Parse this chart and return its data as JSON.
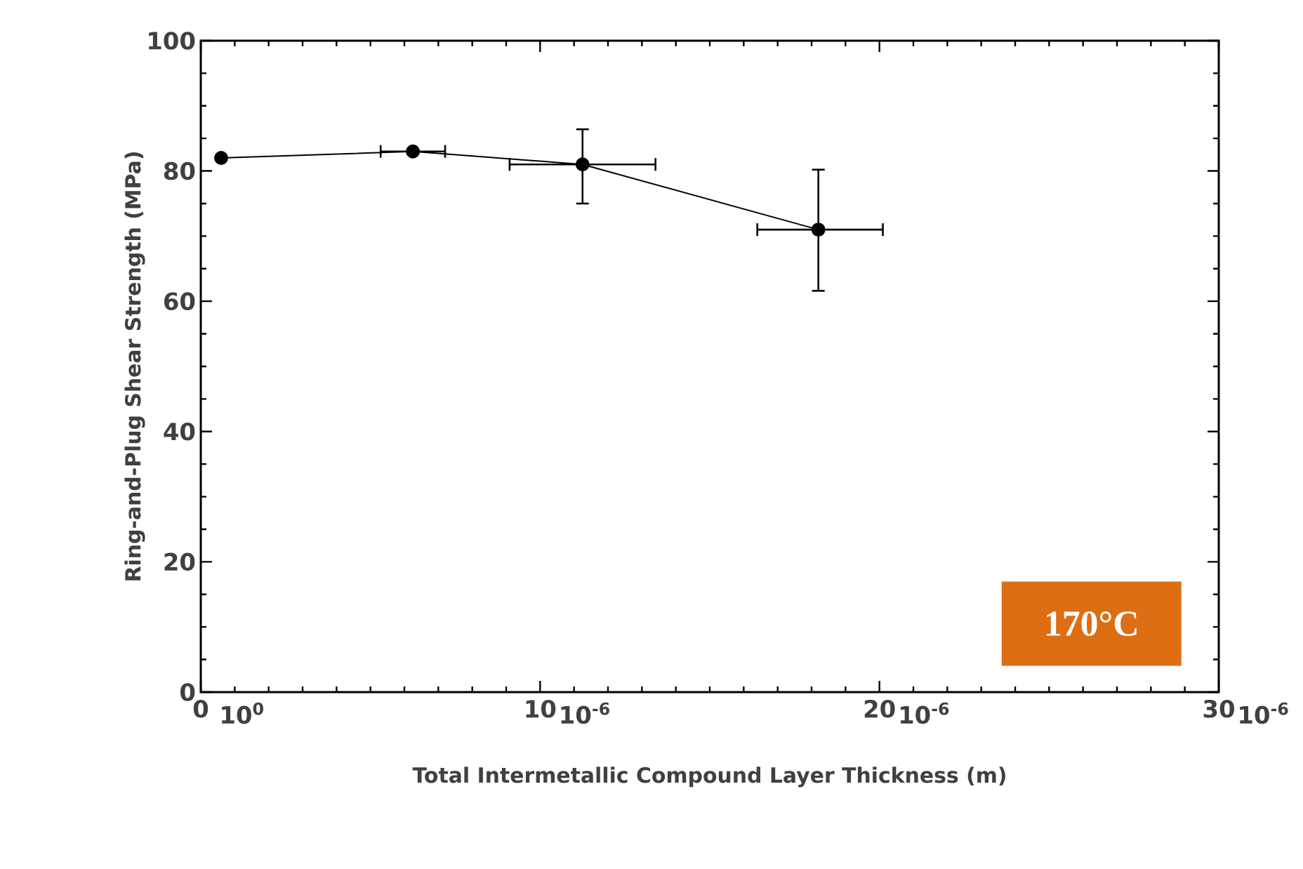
{
  "chart_data": {
    "type": "line",
    "xlabel": "Total  Intermetallic  Compound  Layer  Thickness    (m)",
    "ylabel": "Ring-and-Plug  Shear  Strength    (MPa)",
    "x": [
      0.6,
      6.25,
      11.25,
      18.2
    ],
    "values": [
      82,
      83,
      81,
      71
    ],
    "errors": [
      null,
      null,
      [
        75,
        86.4
      ],
      [
        61.6,
        80.2
      ]
    ],
    "xerrors": [
      null,
      [
        5.3,
        7.2
      ],
      [
        9.1,
        13.4
      ],
      [
        16.4,
        20.1
      ]
    ],
    "color": "#000000",
    "marker": "circle",
    "line_style": "solid",
    "xlim": [
      0,
      30
    ],
    "xticks": [
      0,
      10,
      20,
      30
    ],
    "ylim": [
      0,
      100
    ],
    "yticks": [
      0,
      20,
      40,
      60,
      80,
      100
    ],
    "grid": false,
    "annotations": [
      "170°C",
      "10$^{0}$",
      "10$^{-6}$",
      "10$^{-6}$",
      "10$^{-6}$"
    ]
  }
}
